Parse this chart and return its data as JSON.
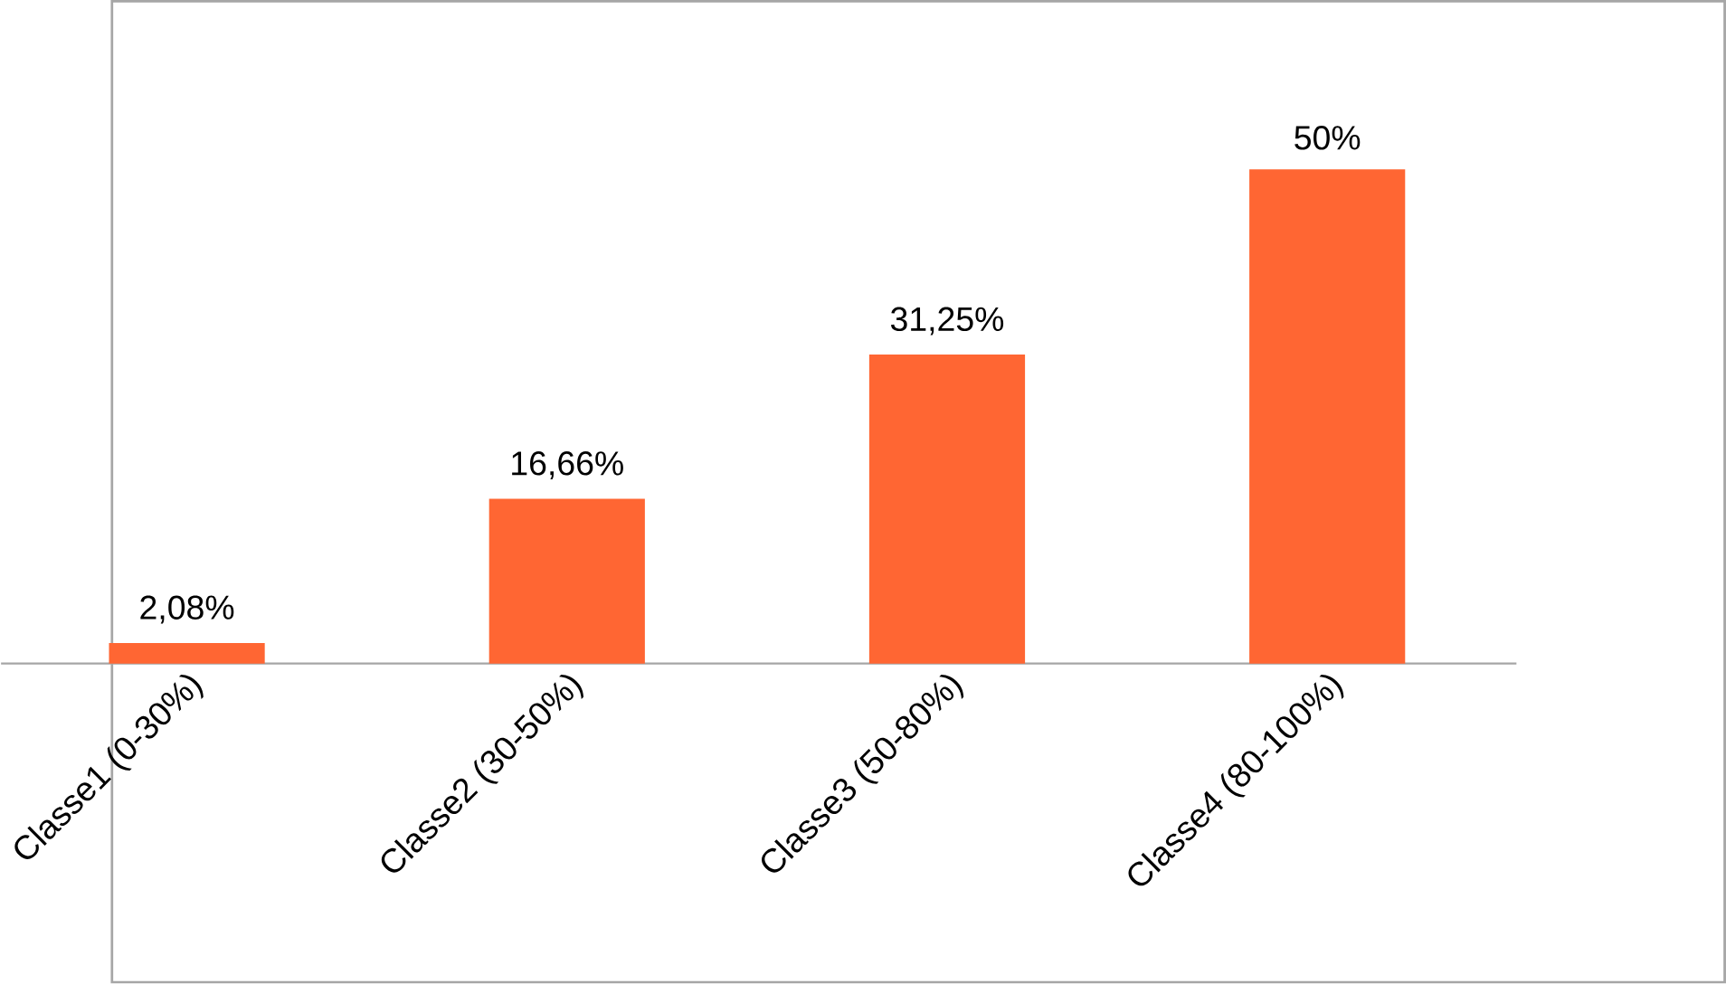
{
  "chart_data": {
    "type": "bar",
    "categories": [
      "Classe1 (0-30%)",
      "Classe2 (30-50%)",
      "Classe3 (50-80%)",
      "Classe4 (80-100%)"
    ],
    "values": [
      2.08,
      16.66,
      31.25,
      50
    ],
    "value_labels": [
      "2,08%",
      "16,66%",
      "31,25%",
      "50%"
    ],
    "color": "#ff6633"
  }
}
